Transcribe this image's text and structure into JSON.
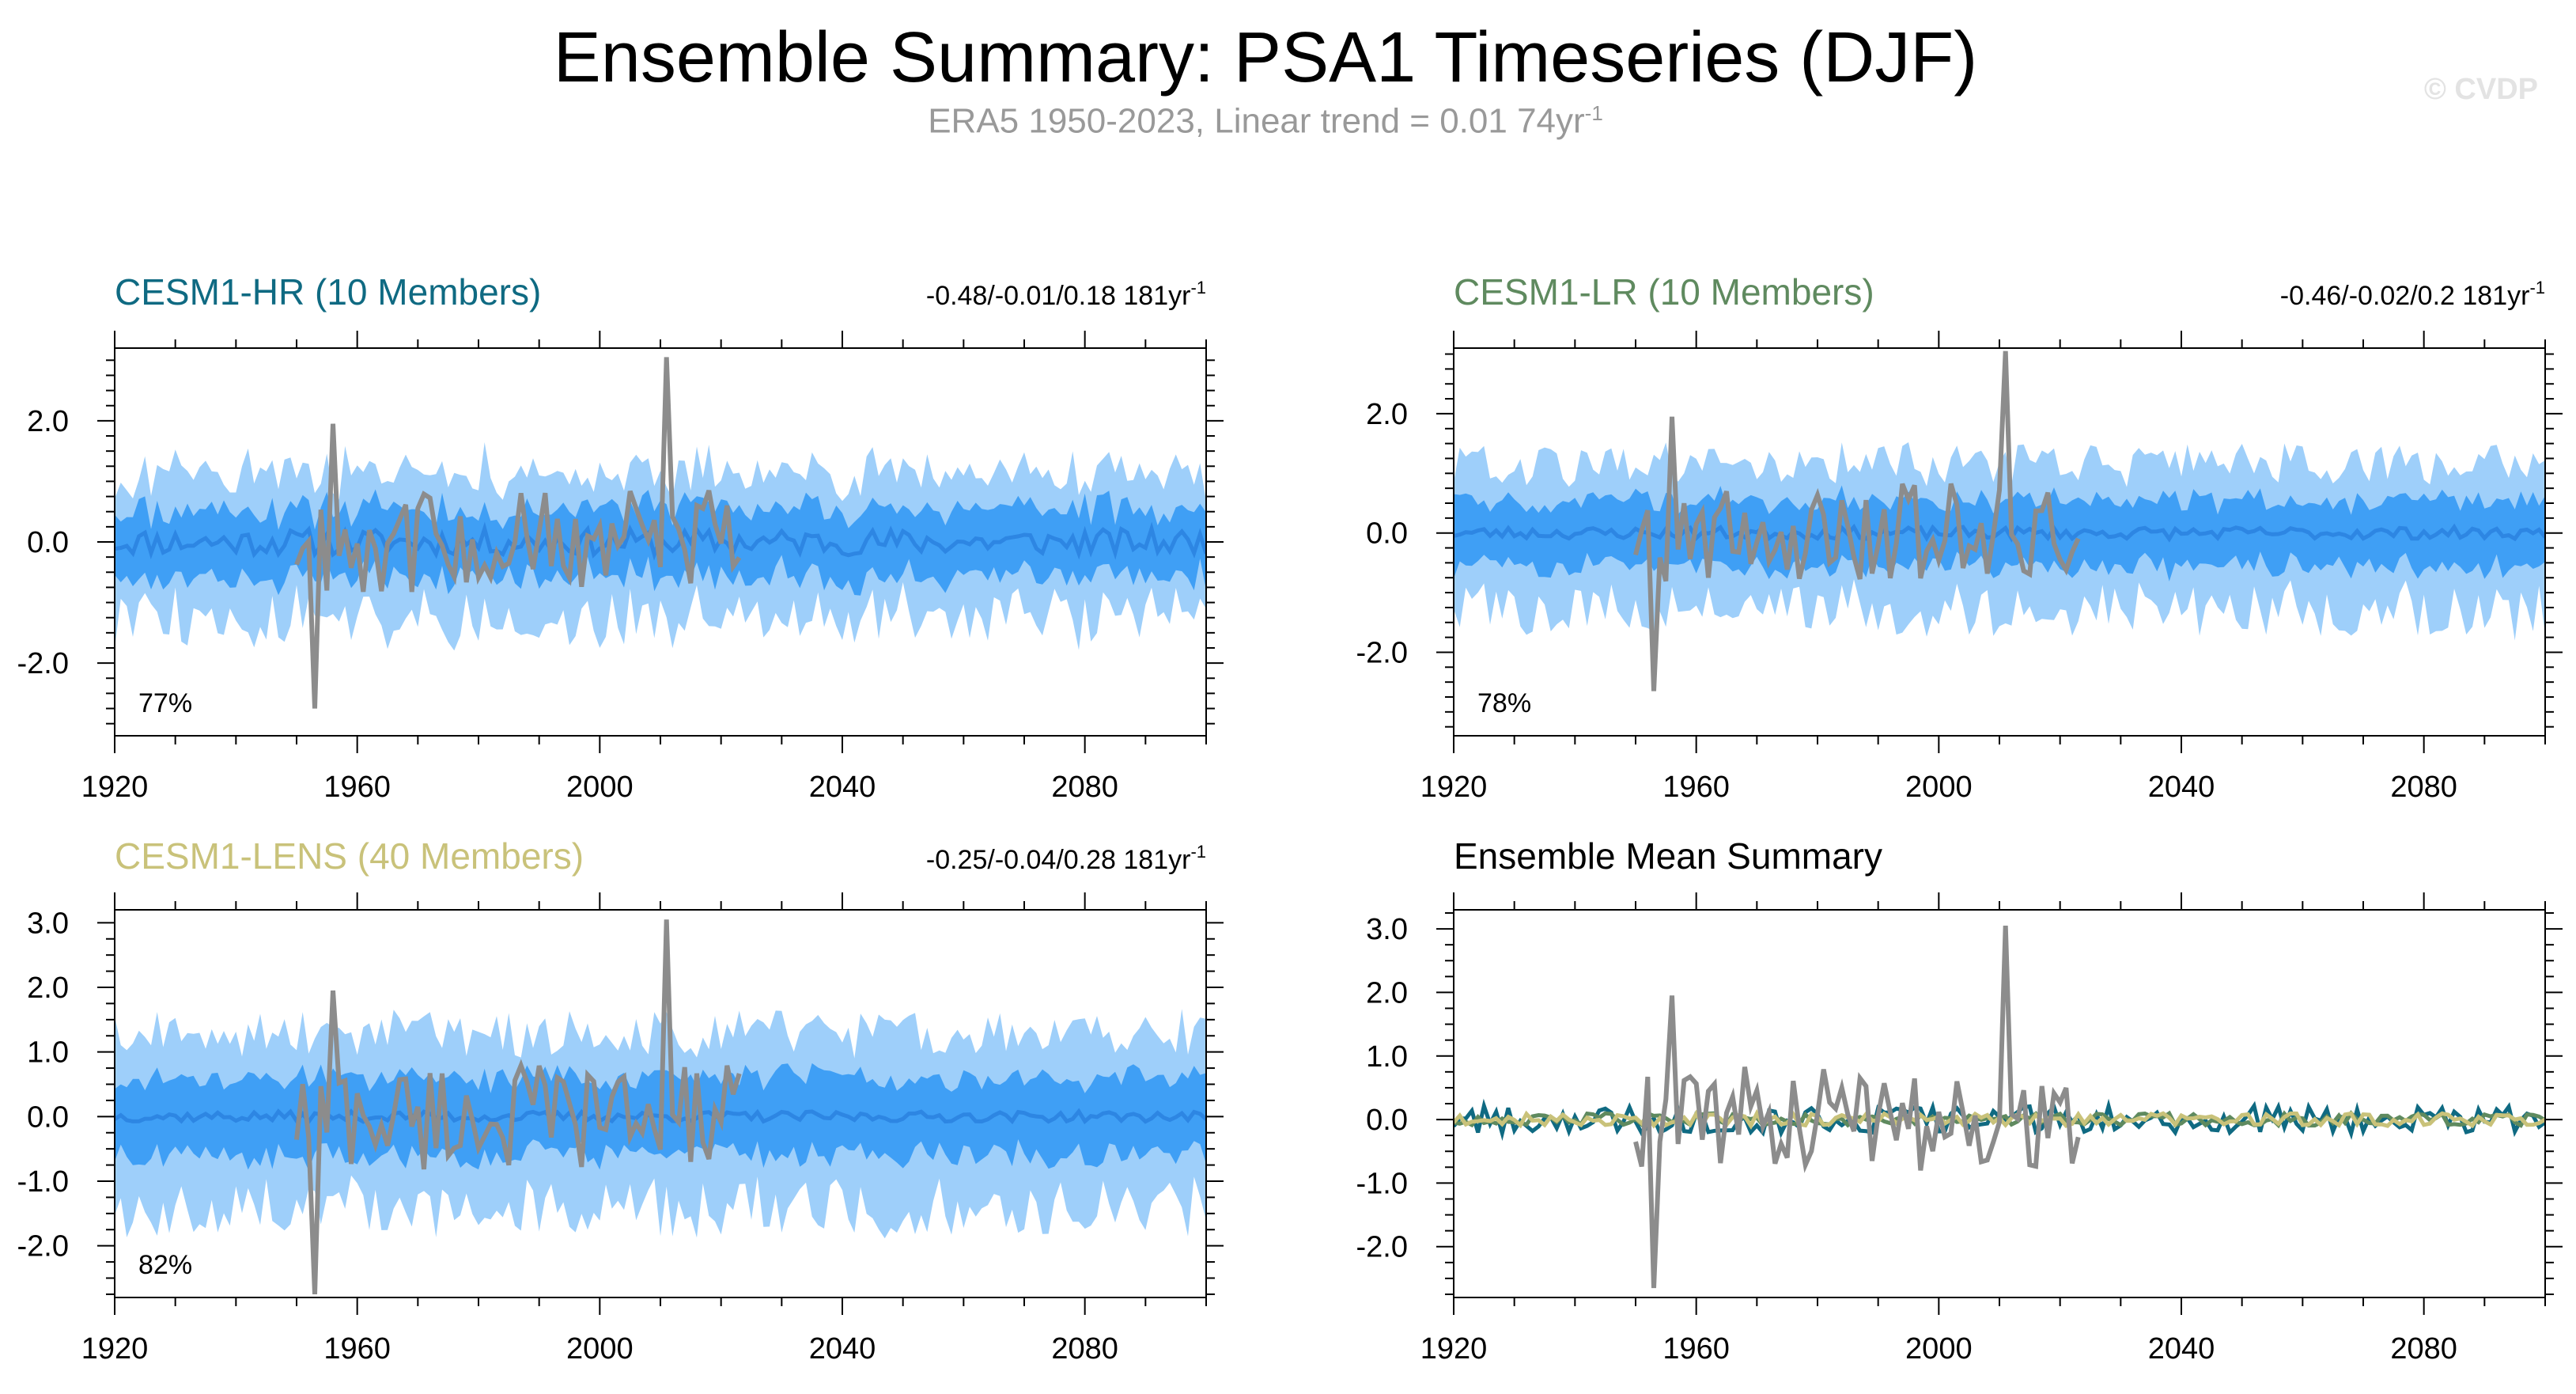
{
  "title": "Ensemble Summary: PSA1 Timeseries (DJF)",
  "subtitle": {
    "text": "ERA5 1950-2023, Linear trend = 0.01 74yr",
    "sup": "-1"
  },
  "watermark": "© CVDP",
  "colors": {
    "band_outer": "#9ecffa",
    "band_inner": "#3f9ff5",
    "mean_line": "#2d86e3",
    "obs_line": "#8c8c8c",
    "hr": "#0f6a82",
    "lr": "#5f8a5f",
    "lens": "#c9c27a"
  },
  "chart_data": [
    {
      "type": "area",
      "panel": "top-left",
      "title": "CESM1-HR (10 Members)",
      "title_color": "#0f6a82",
      "trend": "-0.48/-0.01/0.18 181yr",
      "trend_sup": "-1",
      "percent": "77%",
      "xlim": [
        1920,
        2100
      ],
      "ylim": [
        -3.2,
        3.2
      ],
      "x_ticks": [
        1920,
        1960,
        2000,
        2040,
        2080
      ],
      "y_ticks": [
        -2.0,
        0.0,
        2.0
      ],
      "y_tick_labels": [
        "-2.0",
        "0.0",
        "2.0"
      ],
      "spread_outer": 1.1,
      "spread_inner": 0.55,
      "mean_amp": 0.22,
      "obs_amp": 0.85,
      "seed": 11,
      "obs_spikes": [
        [
          1953,
          -2.75
        ],
        [
          1956,
          1.95
        ],
        [
          2011,
          3.05
        ]
      ]
    },
    {
      "type": "area",
      "panel": "top-right",
      "title": "CESM1-LR (10 Members)",
      "title_color": "#5f8a5f",
      "trend": "-0.46/-0.02/0.2 181yr",
      "trend_sup": "-1",
      "percent": "78%",
      "xlim": [
        1920,
        2100
      ],
      "ylim": [
        -3.4,
        3.1
      ],
      "x_ticks": [
        1920,
        1960,
        2000,
        2040,
        2080
      ],
      "y_ticks": [
        -2.0,
        0.0,
        2.0
      ],
      "y_tick_labels": [
        "-2.0",
        "0.0",
        "2.0"
      ],
      "spread_outer": 1.15,
      "spread_inner": 0.55,
      "mean_amp": 0.1,
      "obs_amp": 0.85,
      "seed": 23,
      "obs_spikes": [
        [
          1953,
          -2.65
        ],
        [
          1956,
          1.95
        ],
        [
          2011,
          3.05
        ]
      ]
    },
    {
      "type": "area",
      "panel": "bottom-left",
      "title": "CESM1-LENS (40 Members)",
      "title_color": "#c9c27a",
      "trend": "-0.25/-0.04/0.28 181yr",
      "trend_sup": "-1",
      "percent": "82%",
      "xlim": [
        1920,
        2100
      ],
      "ylim": [
        -2.8,
        3.2
      ],
      "x_ticks": [
        1920,
        1960,
        2000,
        2040,
        2080
      ],
      "y_ticks": [
        -2.0,
        -1.0,
        0.0,
        1.0,
        2.0,
        3.0
      ],
      "y_tick_labels": [
        "-2.0",
        "-1.0",
        "0.0",
        "1.0",
        "2.0",
        "3.0"
      ],
      "spread_outer": 1.25,
      "spread_inner": 0.6,
      "mean_amp": 0.08,
      "obs_amp": 0.85,
      "seed": 37,
      "obs_spikes": [
        [
          1953,
          -2.75
        ],
        [
          1956,
          1.95
        ],
        [
          2011,
          3.05
        ]
      ]
    },
    {
      "type": "line",
      "panel": "bottom-right",
      "title": "Ensemble Mean Summary",
      "title_color": "#000000",
      "xlim": [
        1920,
        2100
      ],
      "ylim": [
        -2.8,
        3.3
      ],
      "x_ticks": [
        1920,
        1960,
        2000,
        2040,
        2080
      ],
      "y_ticks": [
        -2.0,
        -1.0,
        0.0,
        1.0,
        2.0,
        3.0
      ],
      "y_tick_labels": [
        "-2.0",
        "-1.0",
        "0.0",
        "1.0",
        "2.0",
        "3.0"
      ],
      "obs_amp": 0.85,
      "seed": 51,
      "obs_spikes": [
        [
          1953,
          -2.65
        ],
        [
          1956,
          1.95
        ],
        [
          2011,
          3.05
        ]
      ],
      "series": [
        {
          "color": "#0f6a82",
          "amp": 0.22
        },
        {
          "color": "#5f8a5f",
          "amp": 0.1
        },
        {
          "color": "#c9c27a",
          "amp": 0.1
        }
      ]
    }
  ]
}
